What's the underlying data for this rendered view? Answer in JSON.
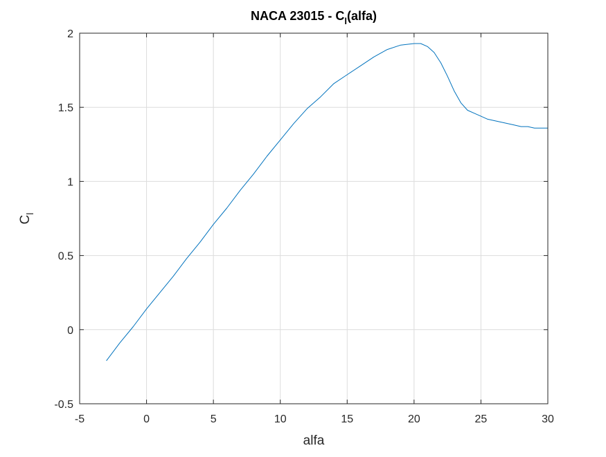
{
  "chart_data": {
    "type": "line",
    "title": {
      "prefix": "NACA 23015 - C",
      "subscript": "l",
      "suffix": "(alfa)"
    },
    "xlabel": "alfa",
    "ylabel": {
      "base": "C",
      "subscript": "l"
    },
    "xlim": [
      -5,
      30
    ],
    "ylim": [
      -0.5,
      2
    ],
    "xticks": [
      -5,
      0,
      5,
      10,
      15,
      20,
      25,
      30
    ],
    "yticks": [
      -0.5,
      0,
      0.5,
      1,
      1.5,
      2
    ],
    "xtick_labels": [
      "-5",
      "0",
      "5",
      "10",
      "15",
      "20",
      "25",
      "30"
    ],
    "ytick_labels": [
      "-0.5",
      "0",
      "0.5",
      "1",
      "1.5",
      "2"
    ],
    "grid": true,
    "line_color": "#0072BD",
    "series": [
      {
        "x": [
          -3,
          -2,
          -1,
          0,
          1,
          2,
          3,
          4,
          5,
          6,
          7,
          8,
          9,
          10,
          11,
          12,
          13,
          14,
          15,
          16,
          17,
          18,
          19,
          20,
          20.5,
          21,
          21.5,
          22,
          22.5,
          23,
          23.5,
          24,
          24.5,
          25,
          25.5,
          26,
          26.5,
          27,
          27.5,
          28,
          28.5,
          29,
          29.5,
          30
        ],
        "y": [
          -0.21,
          -0.09,
          0.02,
          0.14,
          0.25,
          0.36,
          0.48,
          0.59,
          0.71,
          0.82,
          0.94,
          1.05,
          1.17,
          1.28,
          1.39,
          1.49,
          1.57,
          1.66,
          1.72,
          1.78,
          1.84,
          1.89,
          1.92,
          1.93,
          1.93,
          1.91,
          1.87,
          1.8,
          1.71,
          1.61,
          1.53,
          1.48,
          1.46,
          1.44,
          1.42,
          1.41,
          1.4,
          1.39,
          1.38,
          1.37,
          1.37,
          1.36,
          1.36,
          1.36
        ]
      }
    ]
  }
}
